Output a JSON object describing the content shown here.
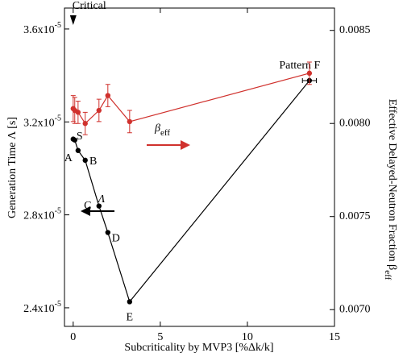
{
  "chart_data": {
    "type": "line",
    "xlabel": "Subcriticality by MVP3   [%Δk/k]",
    "ylabel": "Generation Time Λ [s]",
    "ylabel2": "Effective Delayed-Neutron Fraction β",
    "ylabel2_sub": "eff",
    "xlim": [
      -0.5,
      15
    ],
    "xticks": [
      0,
      5,
      10,
      15
    ],
    "ylim": [
      2.32e-05,
      3.69e-05
    ],
    "yticks": [
      {
        "value": 2.4e-05,
        "label": "2.4x10",
        "exponent": "-5"
      },
      {
        "value": 2.8e-05,
        "label": "2.8x10",
        "exponent": "-5"
      },
      {
        "value": 3.2e-05,
        "label": "3.2x10",
        "exponent": "-5"
      },
      {
        "value": 3.6e-05,
        "label": "3.6x10",
        "exponent": "-5"
      }
    ],
    "y2lim": [
      0.00691,
      0.00862
    ],
    "y2ticks": [
      {
        "value": 0.007,
        "label": "0.0070"
      },
      0.0075,
      {
        "value": 0.008,
        "label": "0.0080"
      },
      0.0085
    ],
    "x": [
      0.0,
      0.09,
      0.28,
      0.69,
      1.48,
      1.99,
      3.24,
      13.56
    ],
    "point_labels": [
      null,
      "S",
      "A",
      "B",
      "C",
      "D",
      "E",
      "Pattern F"
    ],
    "series": [
      {
        "name": "Λ",
        "color": "#000000",
        "values": [
          3.126e-05,
          3.122e-05,
          3.077e-05,
          3.035e-05,
          2.838e-05,
          2.724e-05,
          2.426e-05,
          3.378e-05
        ],
        "xerr": [
          null,
          null,
          null,
          null,
          null,
          null,
          null,
          0.4
        ]
      },
      {
        "name": "β",
        "name_sub": "eff",
        "color": "#d0312d",
        "axis": "y2",
        "values": [
          0.00808,
          0.00807,
          0.00806,
          0.008,
          0.00807,
          0.00815,
          0.00801,
          0.00827
        ],
        "errors": [
          7e-05,
          7e-05,
          6e-05,
          6e-05,
          6e-05,
          6e-05,
          6e-05,
          6e-05
        ]
      }
    ],
    "annotations": [
      {
        "text": "Critical",
        "x": 0
      }
    ]
  }
}
